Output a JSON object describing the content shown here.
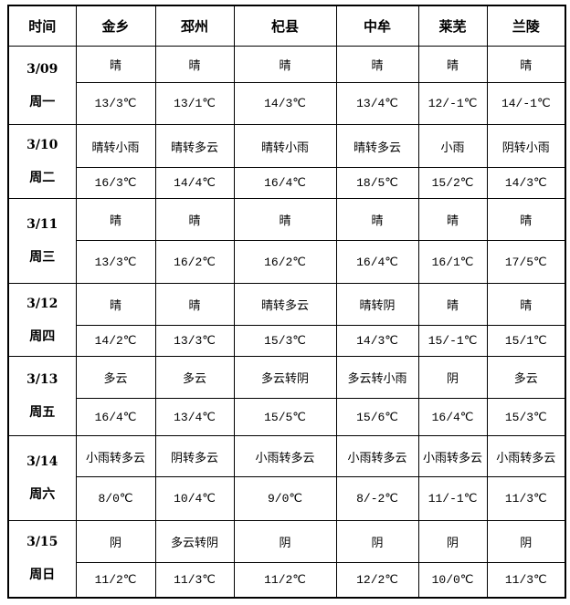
{
  "headers": [
    "时间",
    "金乡",
    "邳州",
    "杞县",
    "中牟",
    "莱芜",
    "兰陵"
  ],
  "rows": [
    {
      "date": "3/09",
      "weekday": "周一",
      "weather": [
        "晴",
        "晴",
        "晴",
        "晴",
        "晴",
        "晴"
      ],
      "temp": [
        "13/3℃",
        "13/1℃",
        "14/3℃",
        "13/4℃",
        "12/-1℃",
        "14/-1℃"
      ]
    },
    {
      "date": "3/10",
      "weekday": "周二",
      "weather": [
        "晴转小雨",
        "晴转多云",
        "晴转小雨",
        "晴转多云",
        "小雨",
        "阴转小雨"
      ],
      "temp": [
        "16/3℃",
        "14/4℃",
        "16/4℃",
        "18/5℃",
        "15/2℃",
        "14/3℃"
      ]
    },
    {
      "date": "3/11",
      "weekday": "周三",
      "weather": [
        "晴",
        "晴",
        "晴",
        "晴",
        "晴",
        "晴"
      ],
      "temp": [
        "13/3℃",
        "16/2℃",
        "16/2℃",
        "16/4℃",
        "16/1℃",
        "17/5℃"
      ]
    },
    {
      "date": "3/12",
      "weekday": "周四",
      "weather": [
        "晴",
        "晴",
        "晴转多云",
        "晴转阴",
        "晴",
        "晴"
      ],
      "temp": [
        "14/2℃",
        "13/3℃",
        "15/3℃",
        "14/3℃",
        "15/-1℃",
        "15/1℃"
      ]
    },
    {
      "date": "3/13",
      "weekday": "周五",
      "weather": [
        "多云",
        "多云",
        "多云转阴",
        "多云转小雨",
        "阴",
        "多云"
      ],
      "temp": [
        "16/4℃",
        "13/4℃",
        "15/5℃",
        "15/6℃",
        "16/4℃",
        "15/3℃"
      ]
    },
    {
      "date": "3/14",
      "weekday": "周六",
      "weather": [
        "小雨转多云",
        "阴转多云",
        "小雨转多云",
        "小雨转多云",
        "小雨转多云",
        "小雨转多云"
      ],
      "temp": [
        "8/0℃",
        "10/4℃",
        "9/0℃",
        "8/-2℃",
        "11/-1℃",
        "11/3℃"
      ]
    },
    {
      "date": "3/15",
      "weekday": "周日",
      "weather": [
        "阴",
        "多云转阴",
        "阴",
        "阴",
        "阴",
        "阴"
      ],
      "temp": [
        "11/2℃",
        "11/3℃",
        "11/2℃",
        "12/2℃",
        "10/0℃",
        "11/3℃"
      ]
    }
  ]
}
